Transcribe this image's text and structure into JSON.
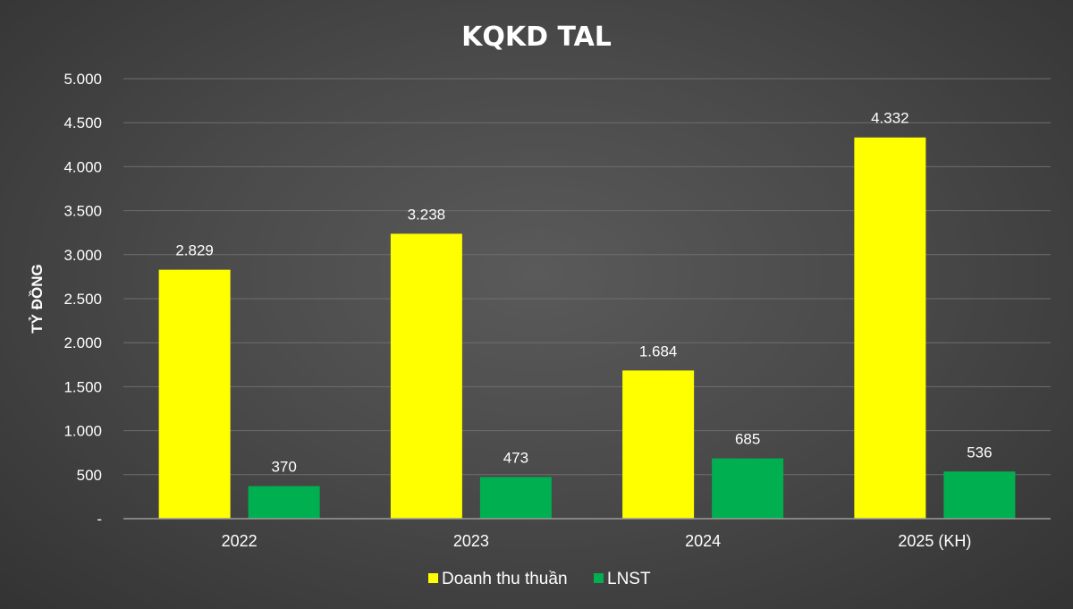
{
  "chart_data": {
    "type": "bar",
    "title": "KQKD TAL",
    "ylabel": "TỶ ĐỒNG",
    "xlabel": "",
    "ylim": [
      0,
      5000
    ],
    "yticks": [
      {
        "value": 0,
        "label": "-"
      },
      {
        "value": 500,
        "label": "500"
      },
      {
        "value": 1000,
        "label": "1.000"
      },
      {
        "value": 1500,
        "label": "1.500"
      },
      {
        "value": 2000,
        "label": "2.000"
      },
      {
        "value": 2500,
        "label": "2.500"
      },
      {
        "value": 3000,
        "label": "3.000"
      },
      {
        "value": 3500,
        "label": "3.500"
      },
      {
        "value": 4000,
        "label": "4.000"
      },
      {
        "value": 4500,
        "label": "4.500"
      },
      {
        "value": 5000,
        "label": "5.000"
      }
    ],
    "grid": true,
    "legend_position": "bottom",
    "categories": [
      "2022",
      "2023",
      "2024",
      "2025 (KH)"
    ],
    "series": [
      {
        "name": "Doanh thu thuần",
        "color": "#ffff00",
        "values": [
          2829,
          3238,
          1684,
          4332
        ],
        "labels": [
          "2.829",
          "3.238",
          "1.684",
          "4.332"
        ]
      },
      {
        "name": "LNST",
        "color": "#00b050",
        "values": [
          370,
          473,
          685,
          536
        ],
        "labels": [
          "370",
          "473",
          "685",
          "536"
        ]
      }
    ]
  }
}
